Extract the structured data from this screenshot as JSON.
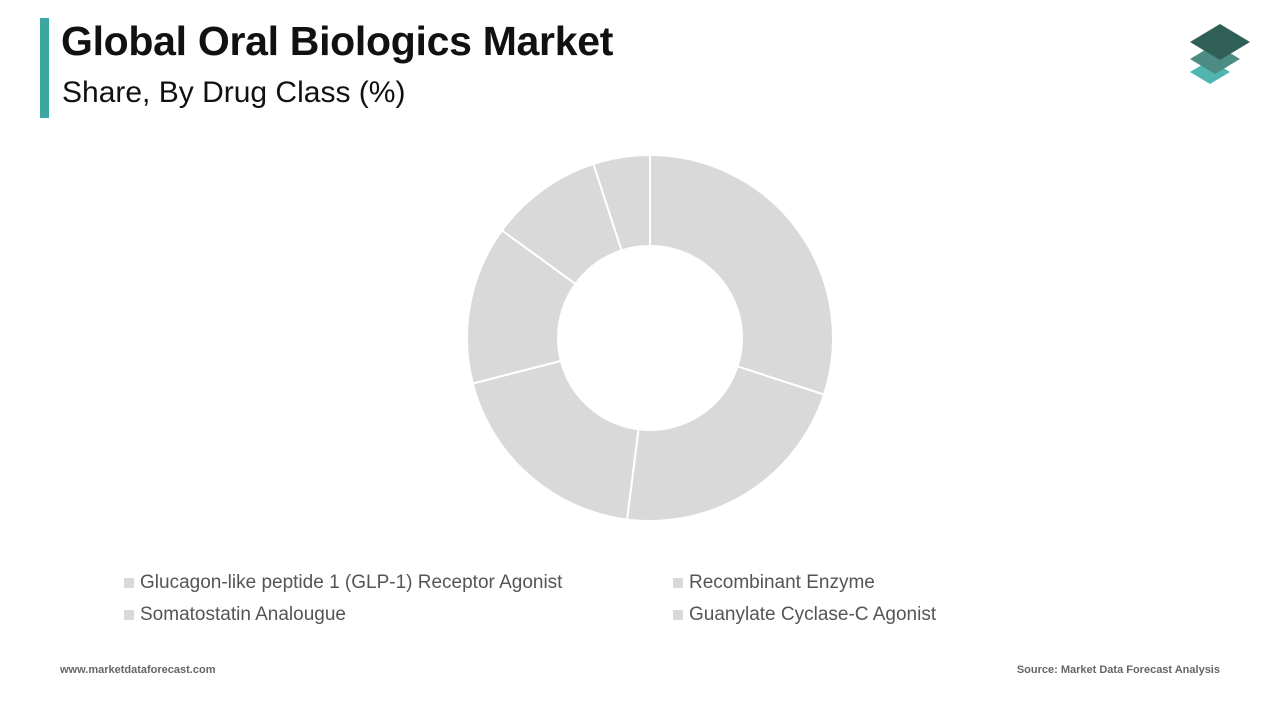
{
  "header": {
    "title": "Global Oral Biologics Market",
    "subtitle": "Share, By Drug Class (%)",
    "accent_color": "#3aa8a0"
  },
  "logo": {
    "icon": "stacked-layers-icon",
    "colors": [
      "#2f5f57",
      "#4d8c84",
      "#4fb5ae"
    ]
  },
  "chart_data": {
    "type": "donut",
    "slice_color": "#d9d9d9",
    "separator_color": "#ffffff",
    "legend_position": "bottom",
    "slices": [
      {
        "label": "Glucagon-like peptide 1 (GLP-1) Receptor Agonist",
        "value": 30
      },
      {
        "label": "Recombinant Enzyme",
        "value": 22
      },
      {
        "label": "Somatostatin Analougue",
        "value": 19
      },
      {
        "label": "Guanylate Cyclase-C Agonist",
        "value": 14
      },
      {
        "label": "",
        "value": 10
      },
      {
        "label": "",
        "value": 5
      }
    ]
  },
  "legend": {
    "items": [
      {
        "label": "Glucagon-like peptide 1 (GLP-1) Receptor Agonist",
        "color": "#d9d9d9"
      },
      {
        "label": "Recombinant Enzyme",
        "color": "#d9d9d9"
      },
      {
        "label": "Somatostatin Analougue",
        "color": "#d9d9d9"
      },
      {
        "label": "Guanylate Cyclase-C Agonist",
        "color": "#d9d9d9"
      }
    ]
  },
  "footer": {
    "website": "www.marketdataforecast.com",
    "source": "Source: Market Data Forecast Analysis"
  }
}
